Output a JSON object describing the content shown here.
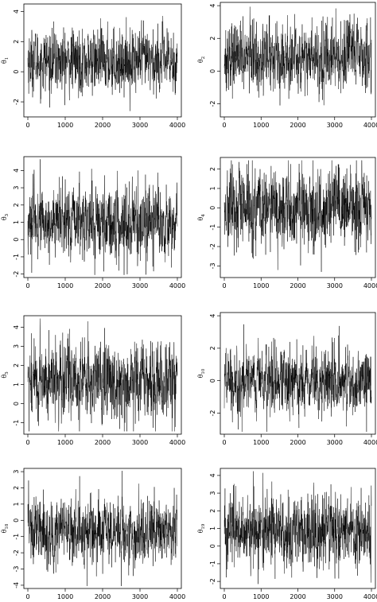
{
  "chart_data": [
    {
      "type": "line",
      "ylabel": "θ",
      "ylabel_sub": "1",
      "xlim": [
        0,
        4000
      ],
      "ylim": [
        -3,
        4.5
      ],
      "xticks": [
        0,
        1000,
        2000,
        3000,
        4000
      ],
      "yticks": [
        -2,
        0,
        2,
        4
      ],
      "center": 0.7,
      "spread": 1.0,
      "grid": false,
      "series": [
        {
          "values": []
        }
      ]
    },
    {
      "type": "line",
      "ylabel": "θ",
      "ylabel_sub": "2",
      "xlim": [
        0,
        4000
      ],
      "ylim": [
        -2.8,
        4.2
      ],
      "xticks": [
        0,
        1000,
        2000,
        3000,
        4000
      ],
      "yticks": [
        -2,
        0,
        2,
        4
      ],
      "center": 0.9,
      "spread": 1.0,
      "grid": false,
      "series": [
        {
          "values": []
        }
      ]
    },
    {
      "type": "line",
      "ylabel": "θ",
      "ylabel_sub": "3",
      "xlim": [
        0,
        4000
      ],
      "ylim": [
        -2.2,
        4.8
      ],
      "xticks": [
        0,
        1000,
        2000,
        3000,
        4000
      ],
      "yticks": [
        -2,
        -1,
        0,
        1,
        2,
        3,
        4
      ],
      "center": 1.0,
      "spread": 1.0,
      "grid": false,
      "series": [
        {
          "values": []
        }
      ]
    },
    {
      "type": "line",
      "ylabel": "θ",
      "ylabel_sub": "4",
      "xlim": [
        0,
        4000
      ],
      "ylim": [
        -3.6,
        2.6
      ],
      "xticks": [
        0,
        1000,
        2000,
        3000,
        4000
      ],
      "yticks": [
        -3,
        -2,
        -1,
        0,
        1,
        2
      ],
      "center": -0.1,
      "spread": 1.0,
      "grid": false,
      "series": [
        {
          "values": []
        }
      ]
    },
    {
      "type": "line",
      "ylabel": "θ",
      "ylabel_sub": "5",
      "xlim": [
        0,
        4000
      ],
      "ylim": [
        -1.6,
        4.6
      ],
      "xticks": [
        0,
        1000,
        2000,
        3000,
        4000
      ],
      "yticks": [
        -1,
        0,
        1,
        2,
        3,
        4
      ],
      "center": 1.2,
      "spread": 1.0,
      "grid": false,
      "series": [
        {
          "values": []
        }
      ]
    },
    {
      "type": "line",
      "ylabel": "θ",
      "ylabel_sub": "10",
      "xlim": [
        0,
        4000
      ],
      "ylim": [
        -3.3,
        4.2
      ],
      "xticks": [
        0,
        1000,
        2000,
        3000,
        4000
      ],
      "yticks": [
        -2,
        0,
        2,
        4
      ],
      "center": 0.0,
      "spread": 1.0,
      "grid": false,
      "series": [
        {
          "values": []
        }
      ]
    },
    {
      "type": "line",
      "ylabel": "θ",
      "ylabel_sub": "18",
      "xlim": [
        0,
        4000
      ],
      "ylim": [
        -4.2,
        3.2
      ],
      "xticks": [
        0,
        1000,
        2000,
        3000,
        4000
      ],
      "yticks": [
        -4,
        -3,
        -2,
        -1,
        0,
        1,
        2,
        3
      ],
      "center": -0.7,
      "spread": 1.0,
      "grid": false,
      "series": [
        {
          "values": []
        }
      ]
    },
    {
      "type": "line",
      "ylabel": "θ",
      "ylabel_sub": "19",
      "xlim": [
        0,
        4000
      ],
      "ylim": [
        -2.4,
        4.4
      ],
      "xticks": [
        0,
        1000,
        2000,
        3000,
        4000
      ],
      "yticks": [
        -2,
        -1,
        0,
        1,
        2,
        3,
        4
      ],
      "center": 0.8,
      "spread": 1.0,
      "grid": false,
      "series": [
        {
          "values": []
        }
      ]
    }
  ]
}
